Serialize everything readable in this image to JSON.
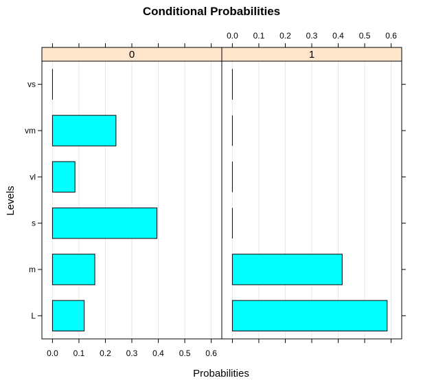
{
  "chart_data": {
    "type": "bar",
    "orientation": "horizontal",
    "title": "Conditional Probabilities",
    "xlabel": "Probabilities",
    "ylabel": "Levels",
    "categories": [
      "vs",
      "vm",
      "vl",
      "s",
      "m",
      "L"
    ],
    "xlim": [
      -0.04,
      0.64
    ],
    "xticks": [
      0.0,
      0.1,
      0.2,
      0.3,
      0.4,
      0.5,
      0.6
    ],
    "xtick_labels": [
      "0.0",
      "0.1",
      "0.2",
      "0.3",
      "0.4",
      "0.5",
      "0.6"
    ],
    "grid": true,
    "bar_color": "#00FFFF",
    "strip_color": "#FFE5CC",
    "panels": [
      {
        "name": "0",
        "values": [
          0.0,
          0.24,
          0.085,
          0.395,
          0.16,
          0.12
        ]
      },
      {
        "name": "1",
        "values": [
          0.0,
          0.003,
          0.003,
          0.0,
          0.415,
          0.585
        ]
      }
    ]
  }
}
